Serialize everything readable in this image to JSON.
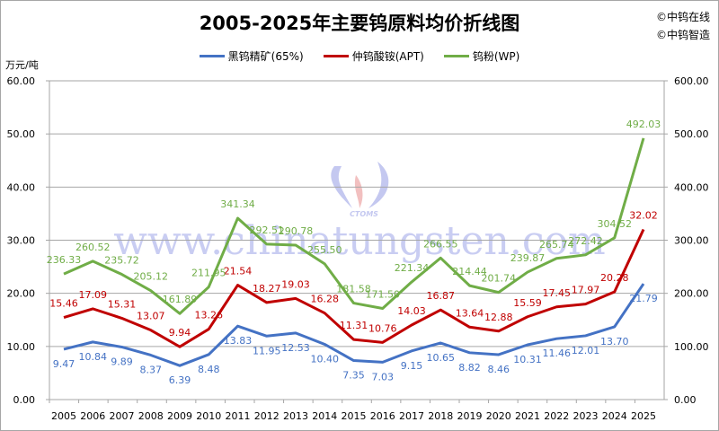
{
  "title": "2005-2025年主要钨原料均价折线图",
  "copyright": [
    "©中钨在线",
    "©中钨智造"
  ],
  "unit_label": "万元/吨",
  "watermark": {
    "logo_text": "CTOMS",
    "url_text": "www.chinatungsten.com"
  },
  "legend": [
    {
      "name": "黑钨精矿(65%)",
      "color": "#4472c4"
    },
    {
      "name": "仲钨酸铵(APT)",
      "color": "#c00000"
    },
    {
      "name": "钨粉(WP)",
      "color": "#70ad47"
    }
  ],
  "chart_data": {
    "type": "line",
    "title": "2005-2025年主要钨原料均价折线图",
    "xlabel": "",
    "ylabel": "万元/吨",
    "categories": [
      "2005",
      "2006",
      "2007",
      "2008",
      "2009",
      "2010",
      "2011",
      "2012",
      "2013",
      "2014",
      "2015",
      "2016",
      "2017",
      "2018",
      "2019",
      "2020",
      "2021",
      "2022",
      "2023",
      "2024",
      "2025"
    ],
    "left_axis": {
      "ylim": [
        0,
        60
      ],
      "ticks": [
        "0.00",
        "10.00",
        "20.00",
        "30.00",
        "40.00",
        "50.00",
        "60.00"
      ]
    },
    "right_axis": {
      "ylim": [
        0,
        600
      ],
      "ticks": [
        "0.00",
        "100.00",
        "200.00",
        "300.00",
        "400.00",
        "500.00",
        "600.00"
      ]
    },
    "grid": true,
    "legend_position": "top",
    "series": [
      {
        "name": "黑钨精矿(65%)",
        "axis": "left",
        "color": "#4472c4",
        "values": [
          9.47,
          10.84,
          9.89,
          8.37,
          6.39,
          8.48,
          13.83,
          11.95,
          12.53,
          10.4,
          7.35,
          7.03,
          9.15,
          10.65,
          8.82,
          8.46,
          10.31,
          11.46,
          12.01,
          13.7,
          21.79
        ]
      },
      {
        "name": "仲钨酸铵(APT)",
        "axis": "left",
        "color": "#c00000",
        "values": [
          15.46,
          17.09,
          15.31,
          13.07,
          9.94,
          13.26,
          21.54,
          18.27,
          19.03,
          16.28,
          11.31,
          10.76,
          14.03,
          16.87,
          13.64,
          12.88,
          15.59,
          17.45,
          17.97,
          20.28,
          32.02
        ]
      },
      {
        "name": "钨粉(WP)",
        "axis": "right",
        "color": "#70ad47",
        "values": [
          236.33,
          260.52,
          235.72,
          205.12,
          161.89,
          211.95,
          341.34,
          292.51,
          290.78,
          255.5,
          181.58,
          171.5,
          221.34,
          266.55,
          214.44,
          201.74,
          239.87,
          265.74,
          272.42,
          304.52,
          492.03
        ]
      }
    ]
  }
}
